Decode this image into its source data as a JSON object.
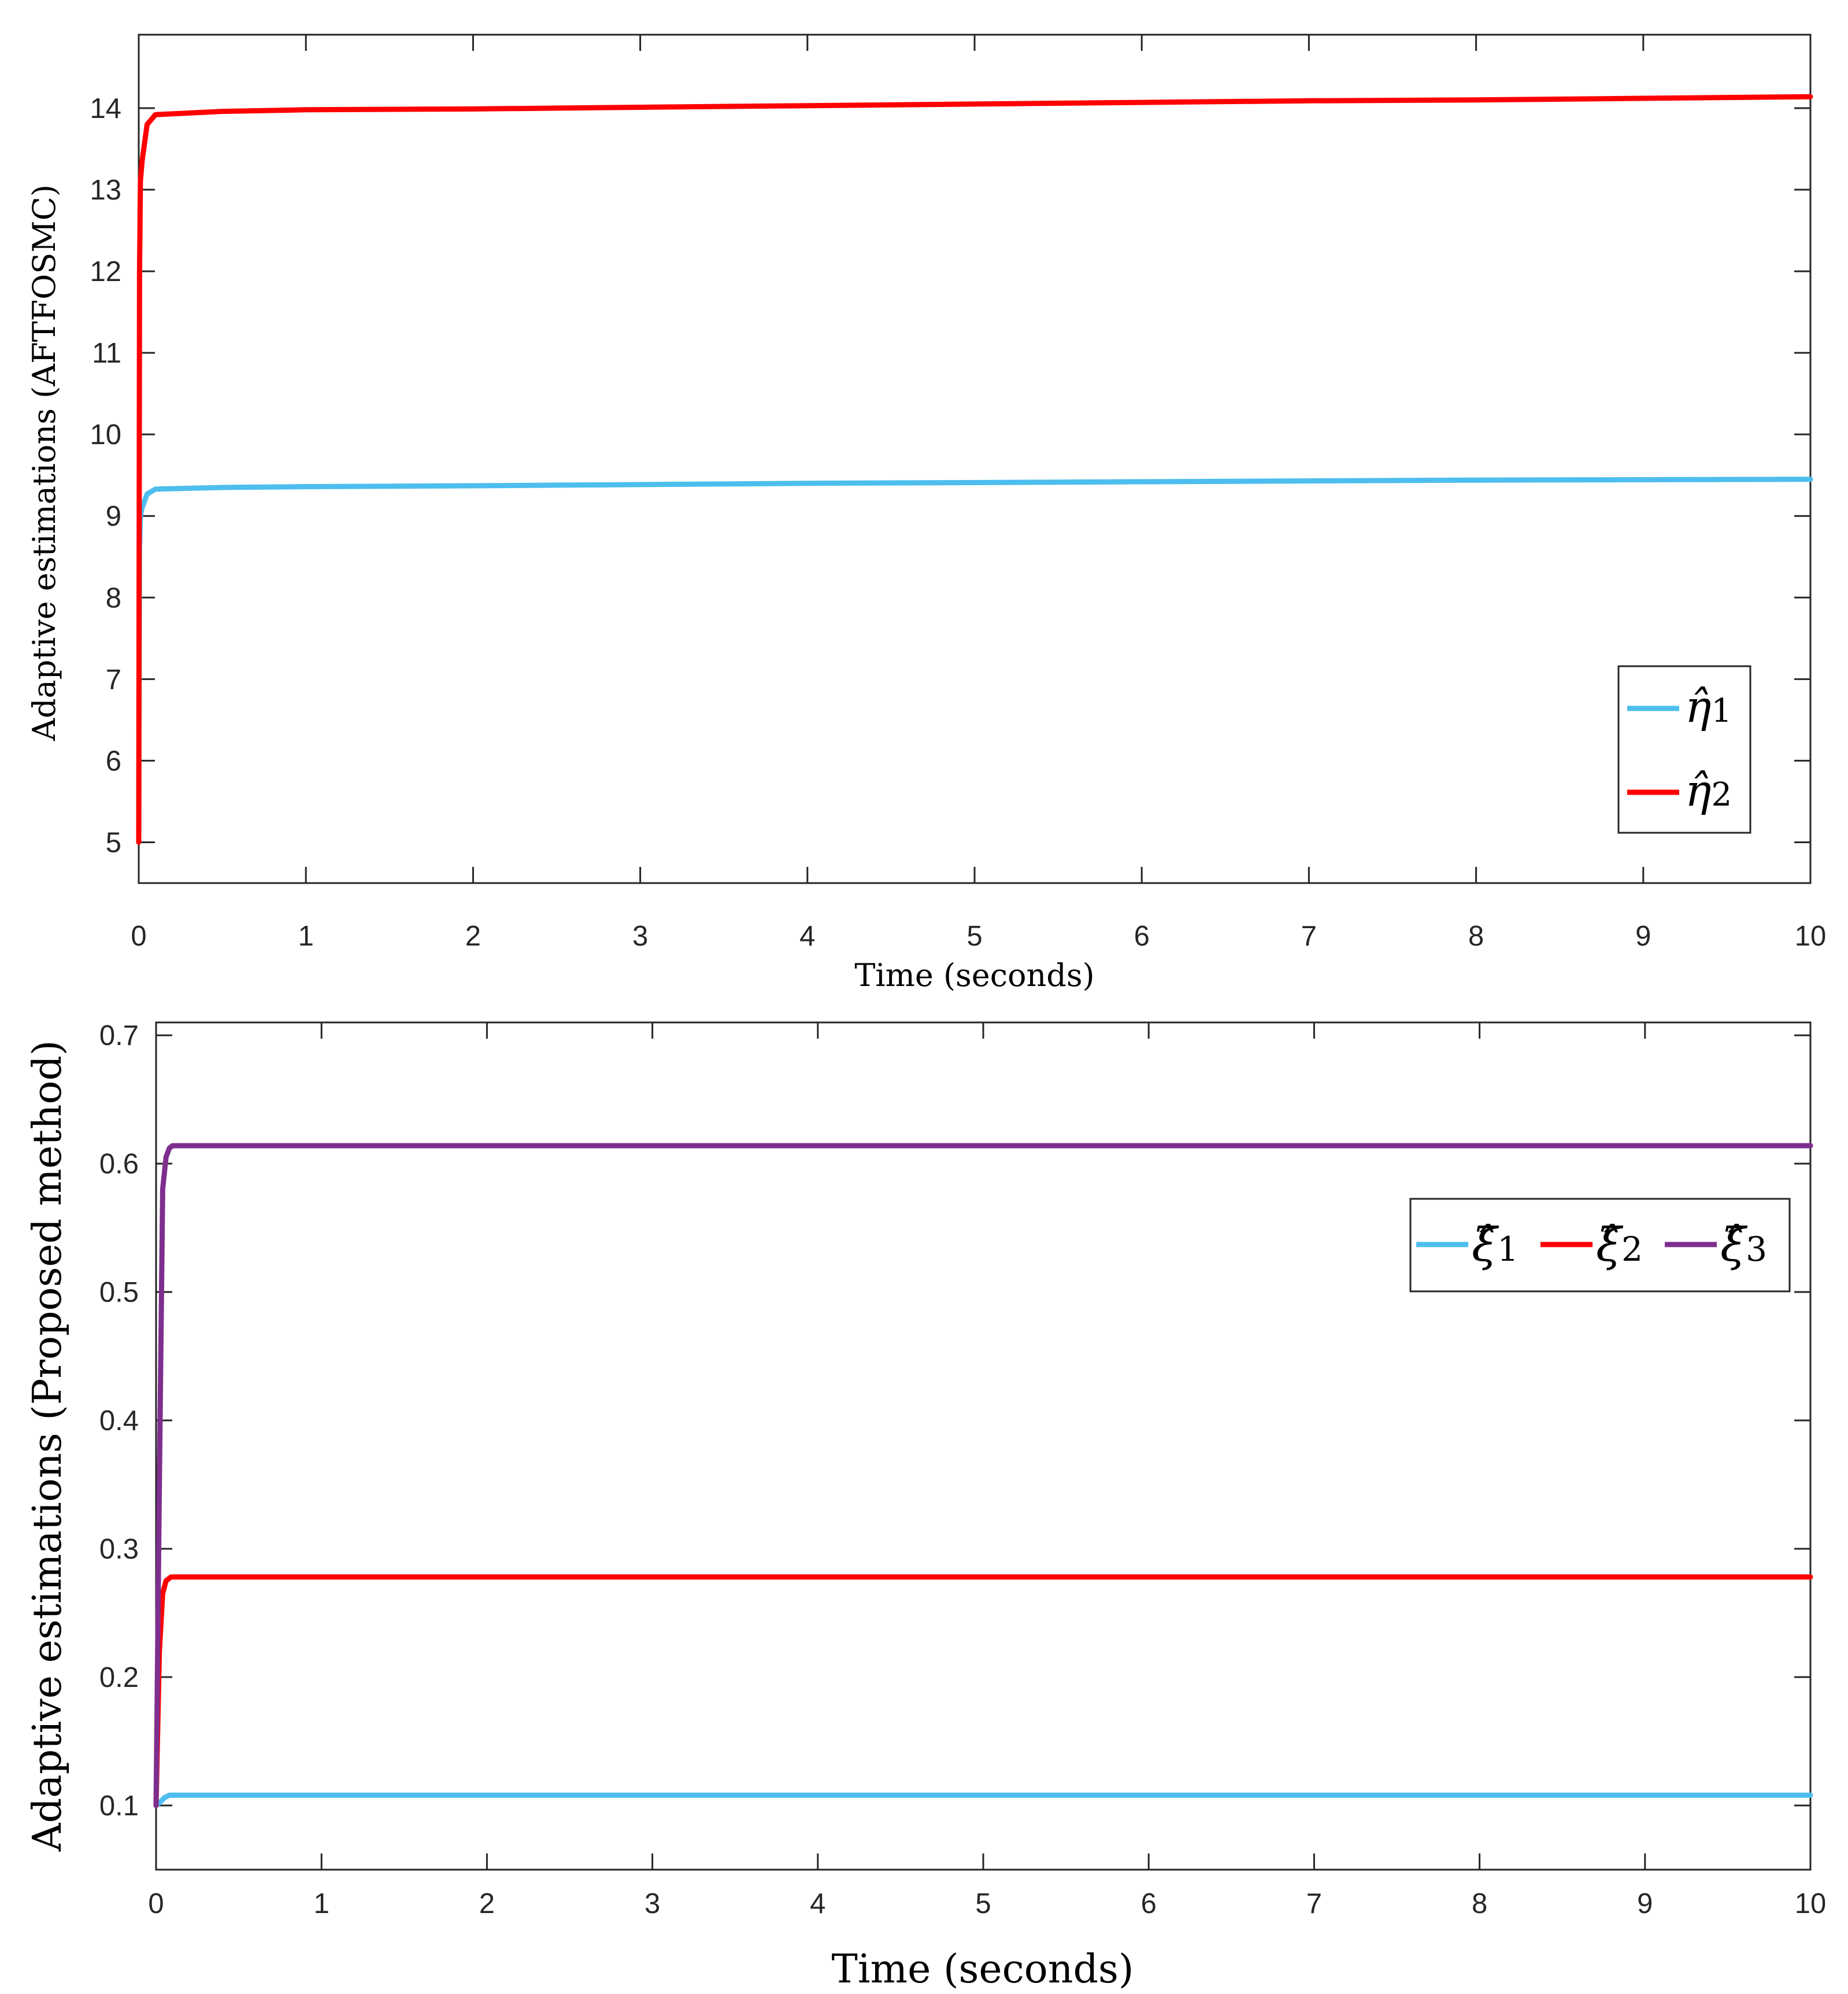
{
  "chart_data": [
    {
      "type": "line",
      "xlabel": "Time (seconds)",
      "ylabel": "Adaptive estimations (AFTFOSMC)",
      "xlim": [
        0,
        10
      ],
      "ylim": [
        4.5,
        14.9
      ],
      "xticks": [
        0,
        1,
        2,
        3,
        4,
        5,
        6,
        7,
        8,
        9,
        10
      ],
      "xtick_labels": [
        "0",
        "1",
        "2",
        "3",
        "4",
        "5",
        "6",
        "7",
        "8",
        "9",
        "10"
      ],
      "yticks": [
        5,
        6,
        7,
        8,
        9,
        10,
        11,
        12,
        13,
        14
      ],
      "ytick_labels": [
        "5",
        "6",
        "7",
        "8",
        "9",
        "10",
        "11",
        "12",
        "13",
        "14"
      ],
      "grid": false,
      "legend": "bottom-right",
      "series": [
        {
          "name": "η̂",
          "subscript": "1",
          "color": "#4DBEEE",
          "x": [
            0,
            0.005,
            0.01,
            0.02,
            0.05,
            0.1,
            0.5,
            1,
            2,
            4,
            6,
            8,
            10
          ],
          "y": [
            5.0,
            8.6,
            9.0,
            9.1,
            9.27,
            9.33,
            9.35,
            9.36,
            9.37,
            9.4,
            9.42,
            9.44,
            9.45
          ]
        },
        {
          "name": "η̂",
          "subscript": "2",
          "color": "#FF0000",
          "x": [
            0,
            0.005,
            0.01,
            0.02,
            0.05,
            0.1,
            0.5,
            1,
            2,
            3,
            4,
            5,
            6,
            7,
            8,
            9,
            10
          ],
          "y": [
            5.0,
            12.0,
            13.1,
            13.35,
            13.8,
            13.92,
            13.96,
            13.98,
            13.99,
            14.01,
            14.03,
            14.05,
            14.07,
            14.09,
            14.1,
            14.12,
            14.14
          ]
        }
      ]
    },
    {
      "type": "line",
      "xlabel": "Time (seconds)",
      "ylabel": "Adaptive estimations (Proposed method)",
      "xlim": [
        0,
        10
      ],
      "ylim": [
        0.05,
        0.71
      ],
      "xticks": [
        0,
        1,
        2,
        3,
        4,
        5,
        6,
        7,
        8,
        9,
        10
      ],
      "xtick_labels": [
        "0",
        "1",
        "2",
        "3",
        "4",
        "5",
        "6",
        "7",
        "8",
        "9",
        "10"
      ],
      "yticks": [
        0.1,
        0.2,
        0.3,
        0.4,
        0.5,
        0.6,
        0.7
      ],
      "ytick_labels": [
        "0.1",
        "0.2",
        "0.3",
        "0.4",
        "0.5",
        "0.6",
        "0.7"
      ],
      "grid": false,
      "legend": "top-right",
      "series": [
        {
          "name": "ξ̂",
          "subscript": "1",
          "color": "#4DBEEE",
          "x": [
            0,
            0.02,
            0.05,
            0.08,
            10
          ],
          "y": [
            0.1,
            0.102,
            0.106,
            0.108,
            0.108
          ]
        },
        {
          "name": "ξ̂",
          "subscript": "2",
          "color": "#FF0000",
          "x": [
            0,
            0.02,
            0.04,
            0.06,
            0.09,
            10
          ],
          "y": [
            0.1,
            0.22,
            0.265,
            0.275,
            0.278,
            0.278
          ]
        },
        {
          "name": "ξ̂",
          "subscript": "3",
          "color": "#7E2F8E",
          "x": [
            0,
            0.02,
            0.04,
            0.06,
            0.08,
            0.1,
            10
          ],
          "y": [
            0.1,
            0.35,
            0.58,
            0.605,
            0.612,
            0.614,
            0.614
          ]
        }
      ]
    }
  ]
}
